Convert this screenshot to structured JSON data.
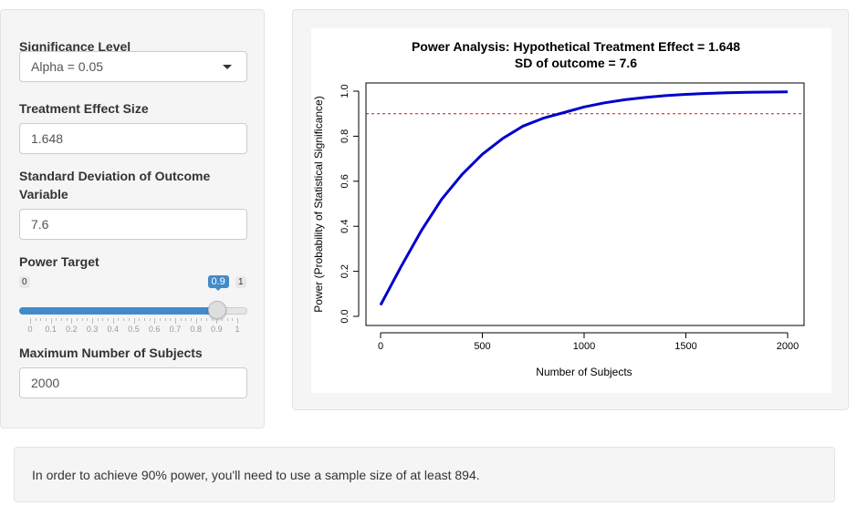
{
  "sidebar": {
    "alpha": {
      "label": "Significance Level",
      "value": "Alpha = 0.05"
    },
    "effect": {
      "label": "Treatment Effect Size",
      "value": "1.648"
    },
    "sd": {
      "label_line1": "Standard Deviation of Outcome",
      "label_line2": "Variable",
      "value": "7.6"
    },
    "power": {
      "label": "Power Target",
      "min": "0",
      "max": "1",
      "value": "0.9",
      "value_fraction": 0.9,
      "grid_labels": [
        "0",
        "0.1",
        "0.2",
        "0.3",
        "0.4",
        "0.5",
        "0.6",
        "0.7",
        "0.8",
        "0.9",
        "1"
      ]
    },
    "max_n": {
      "label": "Maximum Number of Subjects",
      "value": "2000"
    }
  },
  "colors": {
    "slider_accent": "#428bca",
    "curve": "#0000cd",
    "target_line": "#ff0000"
  },
  "result": {
    "text": "In order to achieve 90% power, you'll need to use a sample size of at least 894."
  },
  "chart_data": {
    "type": "line",
    "title_line1": "Power Analysis: Hypothetical Treatment Effect = 1.648",
    "title_line2": "SD of outcome = 7.6",
    "xlabel": "Number of Subjects",
    "ylabel": "Power (Probability of Statistical Significance)",
    "xlim": [
      0,
      2000
    ],
    "ylim": [
      0,
      1
    ],
    "xticks": [
      0,
      500,
      1000,
      1500,
      2000
    ],
    "xtick_labels": [
      "0",
      "500",
      "1000",
      "1500",
      "2000"
    ],
    "yticks": [
      0,
      0.2,
      0.4,
      0.6,
      0.8,
      1
    ],
    "ytick_labels": [
      "0.0",
      "0.2",
      "0.4",
      "0.6",
      "0.8",
      "1.0"
    ],
    "series": [
      {
        "x": [
          0,
          100,
          200,
          300,
          400,
          500,
          600,
          700,
          800,
          900,
          1000,
          1100,
          1200,
          1300,
          1400,
          1500,
          1600,
          1700,
          1800,
          1900,
          2000
        ],
        "values": [
          0.05,
          0.22,
          0.38,
          0.52,
          0.63,
          0.72,
          0.79,
          0.845,
          0.88,
          0.905,
          0.93,
          0.948,
          0.962,
          0.972,
          0.98,
          0.986,
          0.99,
          0.993,
          0.995,
          0.996,
          0.997
        ]
      }
    ],
    "reference_line": {
      "y": 0.9,
      "style": "dashed"
    }
  }
}
